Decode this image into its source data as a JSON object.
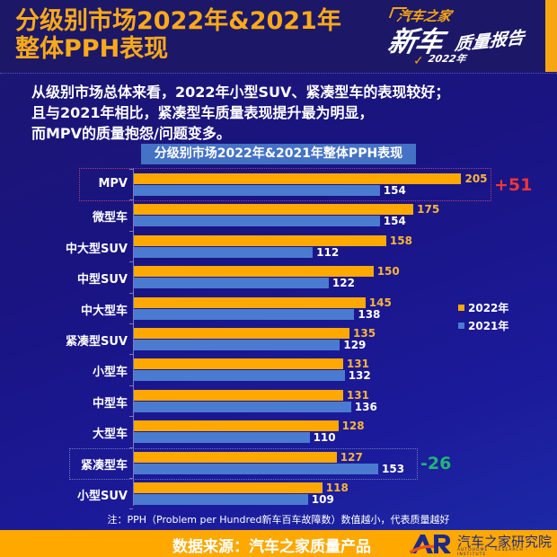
{
  "header": {
    "title_line1": "分级别市场2022年&2021年",
    "title_line2": "整体PPH表现",
    "brand": {
      "line1": "汽车之家",
      "line2": "新车",
      "line3": "质量报告",
      "year": "2022年"
    }
  },
  "summary": {
    "line1": "从级别市场总体来看，2022年小型SUV、紧凑型车的表现较好；",
    "line2": "且与2021年相比，紧凑型车质量表现提升最为明显，",
    "line3": "而MPV的质量抱怨/问题变多。"
  },
  "colors": {
    "series_2022": "#ffa800",
    "series_2021": "#4a7bd0",
    "increase": "#f03535",
    "decrease": "#22b573",
    "background": "#1a1482"
  },
  "chart_data": {
    "type": "bar",
    "orientation": "horizontal",
    "title": "分级别市场2022年&2021年整体PPH表现",
    "xlabel": "",
    "ylabel": "",
    "categories": [
      "MPV",
      "微型车",
      "中大型SUV",
      "中型SUV",
      "中大型车",
      "紧凑型SUV",
      "小型车",
      "中型车",
      "大型车",
      "紧凑型车",
      "小型SUV"
    ],
    "series": [
      {
        "name": "2022年",
        "values": [
          205,
          175,
          158,
          150,
          145,
          135,
          131,
          131,
          128,
          127,
          118
        ]
      },
      {
        "name": "2021年",
        "values": [
          154,
          154,
          112,
          122,
          138,
          129,
          132,
          136,
          110,
          153,
          109
        ]
      }
    ],
    "legend_position": "right",
    "grid": false,
    "annotations": [
      {
        "category": "MPV",
        "text": "+51"
      },
      {
        "category": "紧凑型车",
        "text": "-26"
      }
    ]
  },
  "legend": {
    "item_2022": "2022年",
    "item_2021": "2021年"
  },
  "note": "注：PPH（Problem per Hundred新车百车故障数）数值越小，代表质量越好",
  "footer": {
    "source": "数据来源：汽车之家质量产品",
    "logo_text": "AR",
    "org_name": "汽车之家研究院",
    "org_sub": "AUTOHOME · RESEARCH · INSTITUTE"
  }
}
